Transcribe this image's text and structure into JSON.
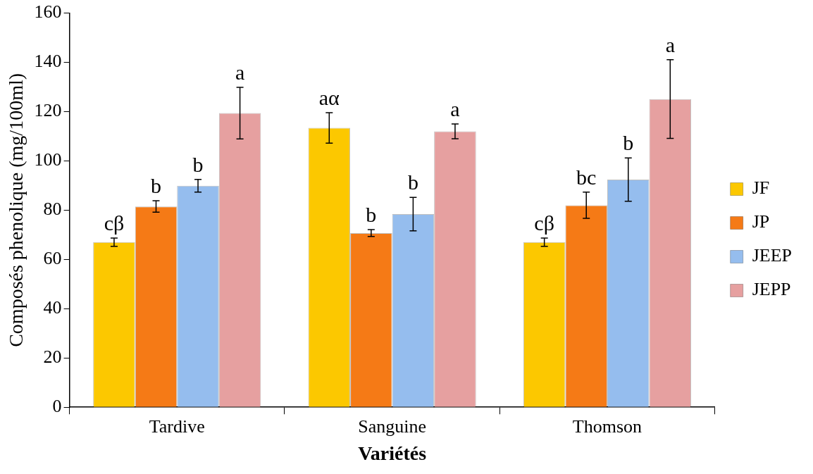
{
  "chart_data": {
    "type": "bar",
    "xlabel": "Variétés",
    "ylabel": "Composés phenolique (mg/100ml)",
    "categories": [
      "Tardive",
      "Sanguine",
      "Thomson"
    ],
    "series": [
      {
        "name": "JF",
        "color": "#fcc800",
        "values": [
          67.0,
          113.4,
          67.0
        ],
        "errors": [
          1.7,
          6.2,
          1.7
        ]
      },
      {
        "name": "JP",
        "color": "#f57a16",
        "values": [
          81.5,
          70.7,
          82.0
        ],
        "errors": [
          2.3,
          1.4,
          5.3
        ]
      },
      {
        "name": "JEEP",
        "color": "#95bdee",
        "values": [
          89.9,
          78.4,
          92.4
        ],
        "errors": [
          2.6,
          6.8,
          8.8
        ]
      },
      {
        "name": "JEPP",
        "color": "#e6a0a0",
        "values": [
          119.4,
          112.0,
          125.1
        ],
        "errors": [
          10.5,
          3.0,
          16.0
        ]
      }
    ],
    "ylim": [
      0,
      160
    ],
    "yticks": [
      0,
      20,
      40,
      60,
      80,
      100,
      120,
      140,
      160
    ],
    "grid": false,
    "legend": "right",
    "annotations": [
      "cβ",
      "b",
      "b",
      "a",
      "aα",
      "b",
      "b",
      "a",
      "cβ",
      "bc",
      "b",
      "a"
    ]
  }
}
